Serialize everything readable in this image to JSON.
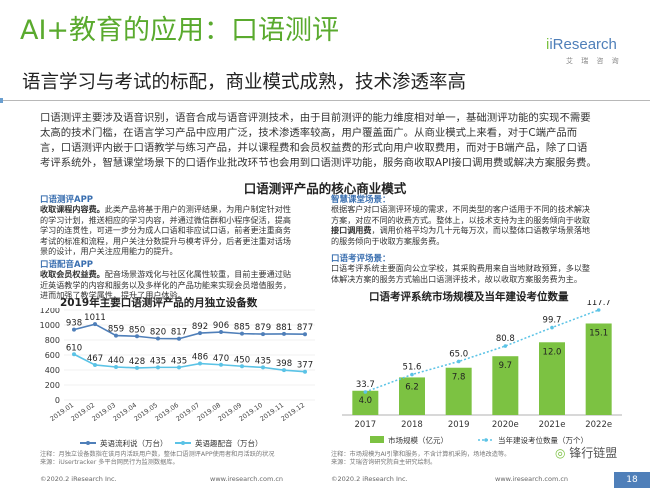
{
  "header": {
    "title": "AI+教育的应用：口语测评",
    "subtitle": "语言学习与考试的标配，商业模式成熟，技术渗透率高",
    "logo_name": "iResearch",
    "logo_sub": "艾 瑞 咨 询"
  },
  "intro_lines": [
    "口语测评主要涉及语音识别，语音合成与语音评测技术，由于目前测评的能力维度相对单一，基础测评功能的实现不需要",
    "太高的技术门槛，在语言学习产品中应用广泛，技术渗透率较高，用户覆盖面广。从商业模式上来看，对于C端产品而",
    "言，口语测评内嵌于口语教学与练习产品，并以课程费和会员权益费的形式向用户收取费用，而对于B端产品，除了口语",
    "考评系统外，智慧课堂场景下的口语作业批改环节也会用到口语测评功能，服务商收取API接口调用费或解决方案服务费。"
  ],
  "center_title": "口语测评产品的核心商业模式",
  "left_sections": [
    {
      "head": "口语测评APP",
      "lines": [
        {
          "bold": "收取课程内容费。",
          "text": "此类产品将基于用户的测评结果，为用户制定针对性"
        },
        {
          "bold": "",
          "text": "的学习计划，推送相应的学习内容，并通过微信群和小程序促活，提高"
        },
        {
          "bold": "",
          "text": "学习的连贯性，可进一步分为成人口语和非应试口语，前者更注重商务"
        },
        {
          "bold": "",
          "text": "考试的标准和流程，用户关注分数提升与模考评分，后者更注重对话场"
        },
        {
          "bold": "",
          "text": "景的设计，用户关注应用能力的提升。"
        }
      ]
    },
    {
      "head": "口语配音APP",
      "lines": [
        {
          "bold": "收取会员权益费。",
          "text": "配音场景游戏化与社区化属性较重，目前主要通过贴"
        },
        {
          "bold": "",
          "text": "近英语教学的内容和服务以及多样化的产品功能来实现会员增值服务，"
        },
        {
          "bold": "",
          "text": "进而加强了教学属性，提升了用户体验。"
        }
      ]
    }
  ],
  "right_sections": [
    {
      "head": "智慧课堂场景：",
      "lines": [
        {
          "bold": "",
          "text": "根据客户对口语测评环境的需求，不同类型的客户适用于不同的技术解决"
        },
        {
          "bold": "",
          "text": "方案，对应不同的收费方式。整体上，以技术支持为主的服务倾向于收取"
        },
        {
          "bold": "接口调用费",
          "text": "，调用价格平均为几十元每万次，而以整体口语教学场景落地"
        },
        {
          "bold": "",
          "text": "的服务倾向于收取方案服务费。"
        }
      ]
    },
    {
      "head": "口语考评场景：",
      "lines": [
        {
          "bold": "",
          "text": "口语考评系统主要面向公立学校，其采购费用来自当地财政预算，多以整"
        },
        {
          "bold": "",
          "text": "体解决方案的服务方式输出口语测评技术，故以收取方案服务费为主。"
        }
      ]
    }
  ],
  "left_chart_title": "2019年主要口语测评产品的月独立设备数",
  "right_chart_title": "口语考评系统市场规模及当年建设考位数量",
  "chart_data": [
    {
      "type": "line",
      "title": "2019年主要口语测评产品的月独立设备数",
      "categories": [
        "2019.01",
        "2019.02",
        "2019.03",
        "2019.04",
        "2019.05",
        "2019.06",
        "2019.07",
        "2019.08",
        "2019.09",
        "2019.10",
        "2019.11",
        "2019.12"
      ],
      "yticks": [
        0,
        200,
        400,
        600,
        800,
        1000,
        1200
      ],
      "ylim": [
        0,
        1200
      ],
      "series": [
        {
          "name": "英语流利说（万台）",
          "color": "#4f7fb9",
          "values": [
            938,
            1011,
            859,
            850,
            820,
            817,
            892,
            906,
            885,
            879,
            881,
            877
          ]
        },
        {
          "name": "英语趣配音（万台）",
          "color": "#5bc3e6",
          "values": [
            610,
            467,
            440,
            428,
            435,
            435,
            486,
            470,
            450,
            435,
            398,
            377
          ]
        }
      ],
      "footnote_lines": [
        "注释：月独立设备数指在该月内活跃用户数，整体口语测评APP使用者和月活跃的状况",
        "来源：iUsertracker 多平台网民行为监测数据库。"
      ]
    },
    {
      "type": "bar",
      "title": "口语考评系统市场规模及当年建设考位数量",
      "categories": [
        "2017",
        "2018",
        "2019",
        "2020e",
        "2021e",
        "2022e"
      ],
      "series": [
        {
          "name": "市场规模（亿元）",
          "type": "bar",
          "color": "#7cc242",
          "values": [
            4.0,
            6.2,
            7.8,
            9.7,
            12.0,
            15.1
          ]
        },
        {
          "name": "当年建设考位数量（万个）",
          "type": "line",
          "color": "#5bc3e6",
          "values": [
            33.7,
            51.6,
            65.0,
            80.8,
            99.7,
            117.7
          ]
        }
      ],
      "footnote_lines": [
        "注释：市场规模为AI引擎和服务，不含计算机采购，场地改造等。",
        "来源：艾瑞咨询研究院自主研究绘制。"
      ]
    }
  ],
  "footer": {
    "copyright_left": "©2020.2 iResearch Inc.",
    "url_left": "www.iresearch.com.cn",
    "copyright_right": "©2020.2 iResearch Inc.",
    "url_right": "www.iresearch.com.cn",
    "page": "18",
    "watermark": "锋行链盟"
  },
  "colors": {
    "title_green": "#5aaa2e",
    "section_blue": "#3a6fb0",
    "brand_blue": "#4f7fb9"
  }
}
